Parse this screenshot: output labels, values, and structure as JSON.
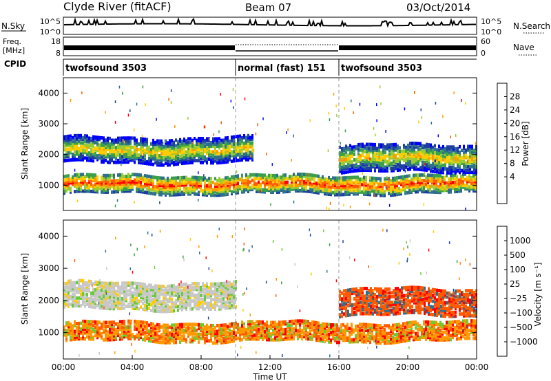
{
  "header": {
    "title": "Clyde River (fitACF)",
    "beam": "Beam 07",
    "date": "03/Oct/2014"
  },
  "status_panels": {
    "nsky": {
      "label": "N.Sky",
      "left_ticks": [
        "10^5",
        "10^0"
      ],
      "right_ticks": [
        "10^5",
        "10^0"
      ],
      "right_label": "N.Search"
    },
    "freq": {
      "label_line1": "Freq.",
      "label_line2": "[MHz]",
      "left_ticks": [
        "18",
        "8"
      ],
      "right_ticks": [
        "60",
        "0"
      ],
      "right_label": "Nave"
    },
    "cpid": {
      "label": "CPID",
      "segments": [
        {
          "text": "twofsound 3503",
          "start_h": 0,
          "end_h": 10
        },
        {
          "text": "normal (fast) 151",
          "start_h": 10,
          "end_h": 16
        },
        {
          "text": "twofsound 3503",
          "start_h": 16,
          "end_h": 24
        }
      ]
    }
  },
  "x_axis": {
    "label": "Time UT",
    "ticks": [
      "00:00",
      "04:00",
      "08:00",
      "12:00",
      "16:00",
      "20:00",
      "00:00"
    ],
    "range_h": [
      0,
      24
    ]
  },
  "chart_data": [
    {
      "type": "heatmap",
      "panel": "power",
      "ylabel": "Slant Range [km]",
      "ylim": [
        180,
        4500
      ],
      "y_ticks": [
        1000,
        2000,
        3000,
        4000
      ],
      "colorbar_label": "Power [dB]",
      "colorbar_ticks": [
        "28",
        "24",
        "20",
        "16",
        "12",
        "8",
        "4"
      ],
      "colorbar_colors": [
        "#ff0000",
        "#ff5a00",
        "#ff9900",
        "#ffcc00",
        "#99cc33",
        "#3aa04a",
        "#2f6f8f",
        "#1e3fa0",
        "#0000ff"
      ],
      "features": [
        {
          "name": "main band",
          "start_h": 0,
          "end_h": 24,
          "range_km": [
            800,
            1400
          ]
        },
        {
          "name": "upper band",
          "start_h": 0,
          "end_h": 11,
          "range_km": [
            1800,
            2600
          ]
        },
        {
          "name": "evening upper band",
          "start_h": 16,
          "end_h": 24,
          "range_km": [
            1500,
            2400
          ]
        }
      ]
    },
    {
      "type": "heatmap",
      "panel": "velocity",
      "ylabel": "Slant Range [km]",
      "ylim": [
        180,
        4500
      ],
      "y_ticks": [
        1000,
        2000,
        3000,
        4000
      ],
      "colorbar_label": "Velocity [m s⁻¹]",
      "colorbar_ticks": [
        "1000",
        "500",
        "100",
        "25",
        "−25",
        "−100",
        "−500",
        "−1000"
      ],
      "colorbar_colors": [
        "#1e3fa0",
        "#2f6f8f",
        "#3aa04a",
        "#66cc33",
        "#c8c8c8",
        "#ffcc00",
        "#ff9900",
        "#ff5a00",
        "#ff0000"
      ],
      "features": [
        {
          "name": "main band",
          "start_h": 0,
          "end_h": 24,
          "range_km": [
            800,
            1400
          ]
        },
        {
          "name": "grey upper band",
          "start_h": 0,
          "end_h": 10,
          "range_km": [
            1800,
            2600
          ]
        },
        {
          "name": "evening red upper band",
          "start_h": 16,
          "end_h": 24,
          "range_km": [
            1600,
            2400
          ]
        }
      ]
    }
  ],
  "colors": {
    "axis": "#000000",
    "divider": "#999999"
  }
}
